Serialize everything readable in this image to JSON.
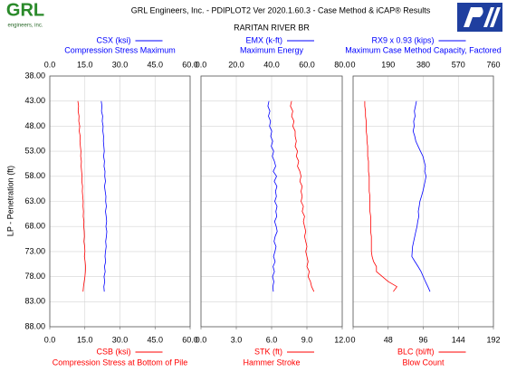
{
  "header": {
    "logo": "GRL",
    "logo_sub": "engineers, inc."
  },
  "chart_data": {
    "type": "line",
    "title": "GRL Engineers, Inc. - PDIPLOT2 Ver 2020.1.60.3 - Case Method & iCAP® Results",
    "subtitle": "RARITAN RIVER BR",
    "ylabel": "LP - Penetration (ft)",
    "ylim": [
      38,
      88
    ],
    "yticks": [
      {
        "value": 38,
        "label": "38.00"
      },
      {
        "value": 43,
        "label": "43.00"
      },
      {
        "value": 48,
        "label": "48.00"
      },
      {
        "value": 53,
        "label": "53.00"
      },
      {
        "value": 58,
        "label": "58.00"
      },
      {
        "value": 63,
        "label": "63.00"
      },
      {
        "value": 68,
        "label": "68.00"
      },
      {
        "value": 73,
        "label": "73.00"
      },
      {
        "value": 78,
        "label": "78.00"
      },
      {
        "value": 83,
        "label": "83.00"
      },
      {
        "value": 88,
        "label": "88.00"
      }
    ],
    "grid": true,
    "depth": [
      43,
      44,
      45,
      46,
      47,
      48,
      49,
      50,
      51,
      52,
      53,
      54,
      55,
      56,
      57,
      58,
      59,
      60,
      61,
      62,
      63,
      64,
      65,
      66,
      67,
      68,
      69,
      70,
      71,
      72,
      73,
      74,
      75,
      76,
      77,
      78,
      79,
      80,
      81
    ],
    "panels": [
      {
        "xlim_top": [
          0,
          60
        ],
        "xticks_top": [
          {
            "value": 0,
            "label": "0.0"
          },
          {
            "value": 15,
            "label": "15.0"
          },
          {
            "value": 30,
            "label": "30.0"
          },
          {
            "value": 45,
            "label": "45.0"
          },
          {
            "value": 60,
            "label": "60.0"
          }
        ],
        "xlim_bottom": [
          0,
          60
        ],
        "xticks_bottom": [
          {
            "value": 0,
            "label": "0.0"
          },
          {
            "value": 15,
            "label": "15.0"
          },
          {
            "value": 30,
            "label": "30.0"
          },
          {
            "value": 45,
            "label": "45.0"
          },
          {
            "value": 60,
            "label": "60.0"
          }
        ],
        "series": [
          {
            "name": "CSX (ksi)",
            "description": "Compression Stress Maximum",
            "color": "#0000ff",
            "axis": "top",
            "values": [
              22.0,
              22.3,
              22.1,
              22.6,
              22.4,
              22.8,
              22.7,
              23.0,
              22.9,
              23.1,
              23.3,
              23.0,
              23.4,
              23.2,
              23.6,
              23.5,
              23.8,
              23.4,
              23.7,
              24.0,
              23.9,
              24.2,
              23.8,
              24.1,
              24.3,
              24.0,
              24.4,
              24.2,
              23.9,
              24.1,
              23.8,
              23.6,
              23.9,
              23.4,
              23.7,
              23.2,
              23.5,
              23.1,
              23.3
            ]
          },
          {
            "name": "CSB (ksi)",
            "description": "Compression Stress at Bottom of Pile",
            "color": "#ff0000",
            "axis": "bottom",
            "values": [
              12.0,
              12.3,
              12.1,
              12.5,
              12.4,
              12.8,
              12.6,
              13.0,
              12.9,
              13.1,
              13.3,
              13.2,
              13.5,
              13.4,
              13.6,
              13.8,
              13.7,
              14.0,
              13.9,
              14.1,
              14.3,
              14.2,
              14.4,
              14.3,
              14.6,
              14.5,
              14.7,
              14.8,
              14.6,
              14.9,
              15.0,
              14.8,
              15.1,
              15.3,
              15.2,
              15.0,
              14.7,
              14.4,
              14.2
            ]
          }
        ]
      },
      {
        "xlim_top": [
          0,
          80
        ],
        "xticks_top": [
          {
            "value": 0,
            "label": "0.0"
          },
          {
            "value": 20,
            "label": "20.0"
          },
          {
            "value": 40,
            "label": "40.0"
          },
          {
            "value": 60,
            "label": "60.0"
          },
          {
            "value": 80,
            "label": "80.0"
          }
        ],
        "xlim_bottom": [
          0,
          12
        ],
        "xticks_bottom": [
          {
            "value": 0,
            "label": "0.0"
          },
          {
            "value": 3,
            "label": "3.0"
          },
          {
            "value": 6,
            "label": "6.0"
          },
          {
            "value": 9,
            "label": "9.0"
          },
          {
            "value": 12,
            "label": "12.0"
          }
        ],
        "series": [
          {
            "name": "EMX (k-ft)",
            "description": "Maximum Energy",
            "color": "#0000ff",
            "axis": "top",
            "values": [
              38.5,
              37.9,
              39.0,
              38.2,
              39.4,
              38.8,
              40.1,
              39.5,
              40.6,
              39.8,
              41.2,
              40.4,
              41.6,
              42.3,
              40.9,
              42.8,
              41.5,
              43.0,
              42.2,
              42.7,
              41.8,
              43.1,
              42.4,
              42.9,
              41.7,
              42.6,
              43.2,
              42.0,
              41.4,
              42.5,
              41.9,
              41.1,
              42.0,
              40.8,
              41.6,
              40.5,
              41.3,
              40.7,
              41.0
            ]
          },
          {
            "name": "STK (ft)",
            "description": "Hammer Stroke",
            "color": "#ff0000",
            "axis": "bottom",
            "values": [
              7.7,
              7.6,
              7.8,
              7.7,
              7.9,
              7.8,
              8.0,
              8.0,
              8.1,
              8.0,
              8.2,
              8.1,
              8.3,
              8.2,
              8.4,
              8.5,
              8.4,
              8.6,
              8.5,
              8.6,
              8.5,
              8.7,
              8.6,
              8.8,
              8.7,
              8.8,
              8.9,
              8.8,
              8.9,
              9.0,
              8.9,
              9.0,
              9.1,
              9.0,
              9.2,
              9.1,
              9.3,
              9.4,
              9.6
            ]
          }
        ]
      },
      {
        "xlim_top": [
          0,
          760
        ],
        "xticks_top": [
          0,
          190,
          380,
          570,
          760
        ],
        "xlim_bottom": [
          0,
          192
        ],
        "xticks_bottom": [
          0,
          48,
          96,
          144,
          192
        ],
        "series": [
          {
            "name": "RX9 x 0.93 (kips)",
            "description": "Maximum Case Method Capacity, Factored",
            "color": "#0000ff",
            "axis": "top",
            "values": [
              343,
              338,
              332,
              336,
              328,
              331,
              325,
              334,
              340,
              352,
              365,
              378,
              385,
              392,
              388,
              395,
              390,
              384,
              378,
              370,
              362,
              358,
              353,
              356,
              350,
              346,
              340,
              334,
              328,
              322,
              320,
              318,
              335,
              352,
              368,
              380,
              392,
              405,
              417
            ]
          },
          {
            "name": "BLC (bl/ft)",
            "description": "Blow Count",
            "color": "#ff0000",
            "axis": "bottom",
            "values": [
              16,
              16,
              17,
              17,
              18,
              18,
              18,
              19,
              19,
              20,
              20,
              20,
              21,
              21,
              21,
              22,
              22,
              22,
              22,
              23,
              23,
              23,
              23,
              24,
              24,
              24,
              24,
              25,
              25,
              25,
              25,
              26,
              28,
              32,
              32,
              40,
              48,
              60,
              55
            ]
          }
        ]
      }
    ]
  }
}
